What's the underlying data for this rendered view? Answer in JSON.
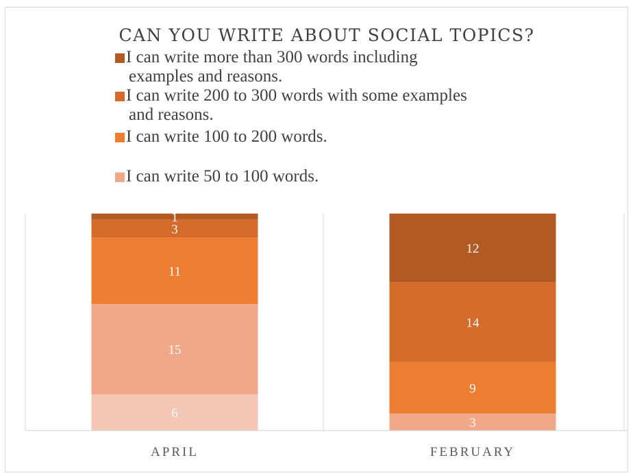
{
  "chart_data": {
    "type": "bar",
    "stacked": true,
    "percent_stacked": true,
    "title": "CAN YOU WRITE ABOUT SOCIAL TOPICS?",
    "categories": [
      "APRIL",
      "FEBRUARY"
    ],
    "series": [
      {
        "name": "",
        "color": "#f5c6b5",
        "values": [
          6,
          0
        ]
      },
      {
        "name": "I can write 50 to 100 words.",
        "color": "#f1a889",
        "values": [
          15,
          3
        ]
      },
      {
        "name": "I can write 100 to 200 words.",
        "color": "#ed7d31",
        "values": [
          11,
          9
        ]
      },
      {
        "name": "I can write 200 to 300 words with some examples and reasons.",
        "color": "#d46b2b",
        "values": [
          3,
          14
        ]
      },
      {
        "name": "I can write more than 300 words including examples and reasons.",
        "color": "#b35a22",
        "values": [
          1,
          12
        ]
      }
    ],
    "legend": {
      "placement": "top",
      "entries": [
        {
          "lines": [
            "I can write more than 300 words including",
            "examples and reasons."
          ],
          "color": "#b35a22"
        },
        {
          "lines": [
            "I can write 200 to 300 words with some examples",
            "and reasons."
          ],
          "color": "#d46b2b"
        },
        {
          "lines": [
            "I can write 100 to 200 words."
          ],
          "color": "#ed7d31"
        },
        {
          "lines": [
            "I can write 50 to 100 words."
          ],
          "color": "#f1a889"
        }
      ]
    },
    "grid": true,
    "data_labels": true
  }
}
